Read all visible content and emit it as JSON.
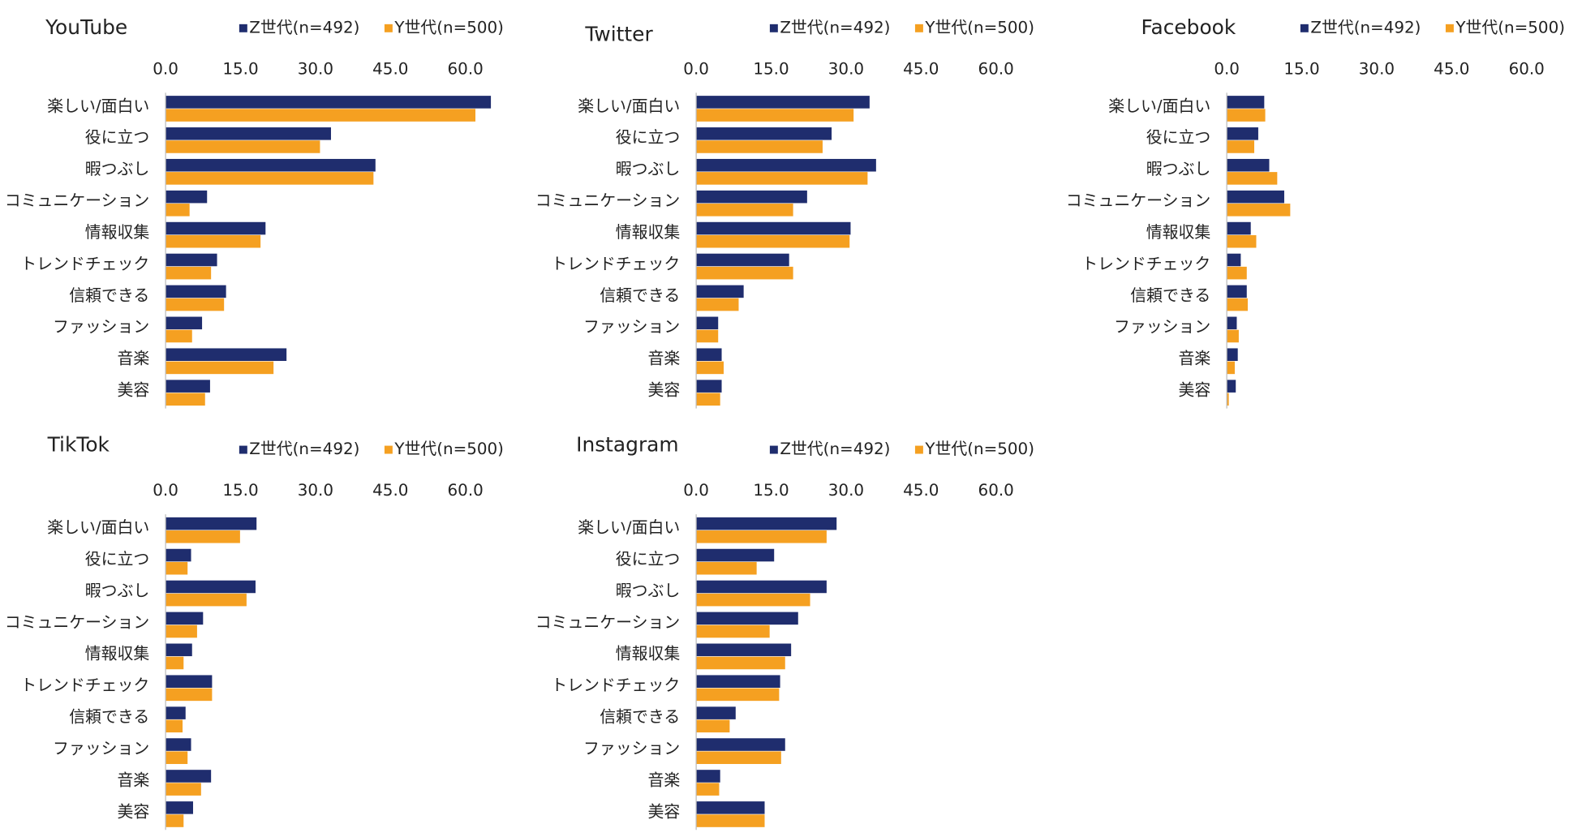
{
  "chart_data": [
    {
      "type": "bar",
      "title": "YouTube",
      "categories": [
        "楽しい/面白い",
        "役に立つ",
        "暇つぶし",
        "コミュニケーション",
        "情報収集",
        "トレンドチェック",
        "信頼できる",
        "ファッション",
        "音楽",
        "美容"
      ],
      "series": [
        {
          "name": "Z世代(n=492)",
          "color": "#1f2d6e",
          "values": [
            65.1,
            33.1,
            42.0,
            8.3,
            20.0,
            10.3,
            12.1,
            7.3,
            24.2,
            8.9
          ]
        },
        {
          "name": "Y世代(n=500)",
          "color": "#f5a021",
          "values": [
            62.0,
            30.9,
            41.6,
            4.8,
            19.0,
            9.1,
            11.7,
            5.3,
            21.6,
            7.9
          ]
        }
      ],
      "xlim": [
        0,
        65
      ],
      "xticks": [
        {
          "value": 0,
          "label": "0.0"
        },
        {
          "value": 15,
          "label": "15.0"
        },
        {
          "value": 30,
          "label": "30.0"
        },
        {
          "value": 45,
          "label": "45.0"
        },
        {
          "value": 60,
          "label": "60.0"
        }
      ]
    },
    {
      "type": "bar",
      "title": "Twitter",
      "categories": [
        "楽しい/面白い",
        "役に立つ",
        "暇つぶし",
        "コミュニケーション",
        "情報収集",
        "トレンドチェック",
        "信頼できる",
        "ファッション",
        "音楽",
        "美容"
      ],
      "series": [
        {
          "name": "Z世代(n=492)",
          "color": "#1f2d6e",
          "values": [
            34.7,
            27.1,
            36.0,
            22.2,
            30.9,
            18.6,
            9.5,
            4.4,
            5.1,
            5.1
          ]
        },
        {
          "name": "Y世代(n=500)",
          "color": "#f5a021",
          "values": [
            31.5,
            25.3,
            34.3,
            19.4,
            30.7,
            19.4,
            8.5,
            4.4,
            5.5,
            4.8
          ]
        }
      ],
      "xlim": [
        0,
        65
      ],
      "xticks": [
        {
          "value": 0,
          "label": "0.0"
        },
        {
          "value": 15,
          "label": "15.0"
        },
        {
          "value": 30,
          "label": "30.0"
        },
        {
          "value": 45,
          "label": "45.0"
        },
        {
          "value": 60,
          "label": "60.0"
        }
      ]
    },
    {
      "type": "bar",
      "title": "Facebook",
      "categories": [
        "楽しい/面白い",
        "役に立つ",
        "暇つぶし",
        "コミュニケーション",
        "情報収集",
        "トレンドチェック",
        "信頼できる",
        "ファッション",
        "音楽",
        "美容"
      ],
      "series": [
        {
          "name": "Z世代(n=492)",
          "color": "#1f2d6e",
          "values": [
            7.5,
            6.3,
            8.5,
            11.5,
            4.8,
            2.8,
            4.0,
            2.0,
            2.2,
            1.8
          ]
        },
        {
          "name": "Y世代(n=500)",
          "color": "#f5a021",
          "values": [
            7.7,
            5.5,
            10.1,
            12.7,
            5.9,
            4.0,
            4.2,
            2.4,
            1.6,
            0.4
          ]
        }
      ],
      "xlim": [
        0,
        65
      ],
      "xticks": [
        {
          "value": 0,
          "label": "0.0"
        },
        {
          "value": 15,
          "label": "15.0"
        },
        {
          "value": 30,
          "label": "30.0"
        },
        {
          "value": 45,
          "label": "45.0"
        },
        {
          "value": 60,
          "label": "60.0"
        }
      ]
    },
    {
      "type": "bar",
      "title": "TikTok",
      "categories": [
        "楽しい/面白い",
        "役に立つ",
        "暇つぶし",
        "コミュニケーション",
        "情報収集",
        "トレンドチェック",
        "信頼できる",
        "ファッション",
        "音楽",
        "美容"
      ],
      "series": [
        {
          "name": "Z世代(n=492)",
          "color": "#1f2d6e",
          "values": [
            18.2,
            5.1,
            18.0,
            7.5,
            5.3,
            9.3,
            4.0,
            5.1,
            9.1,
            5.5
          ]
        },
        {
          "name": "Y世代(n=500)",
          "color": "#f5a021",
          "values": [
            14.9,
            4.4,
            16.2,
            6.3,
            3.6,
            9.3,
            3.4,
            4.4,
            7.1,
            3.6
          ]
        }
      ],
      "xlim": [
        0,
        65
      ],
      "xticks": [
        {
          "value": 0,
          "label": "0.0"
        },
        {
          "value": 15,
          "label": "15.0"
        },
        {
          "value": 30,
          "label": "30.0"
        },
        {
          "value": 45,
          "label": "45.0"
        },
        {
          "value": 60,
          "label": "60.0"
        }
      ]
    },
    {
      "type": "bar",
      "title": "Instagram",
      "categories": [
        "楽しい/面白い",
        "役に立つ",
        "暇つぶし",
        "コミュニケーション",
        "情報収集",
        "トレンドチェック",
        "信頼できる",
        "ファッション",
        "音楽",
        "美容"
      ],
      "series": [
        {
          "name": "Z世代(n=492)",
          "color": "#1f2d6e",
          "values": [
            28.1,
            15.6,
            26.1,
            20.4,
            19.0,
            16.8,
            7.9,
            17.8,
            4.8,
            13.7
          ]
        },
        {
          "name": "Y世代(n=500)",
          "color": "#f5a021",
          "values": [
            26.1,
            12.1,
            22.8,
            14.7,
            17.8,
            16.6,
            6.7,
            17.0,
            4.6,
            13.7
          ]
        }
      ],
      "xlim": [
        0,
        65
      ],
      "xticks": [
        {
          "value": 0,
          "label": "0.0"
        },
        {
          "value": 15,
          "label": "15.0"
        },
        {
          "value": 30,
          "label": "30.0"
        },
        {
          "value": 45,
          "label": "45.0"
        },
        {
          "value": 60,
          "label": "60.0"
        }
      ]
    }
  ]
}
